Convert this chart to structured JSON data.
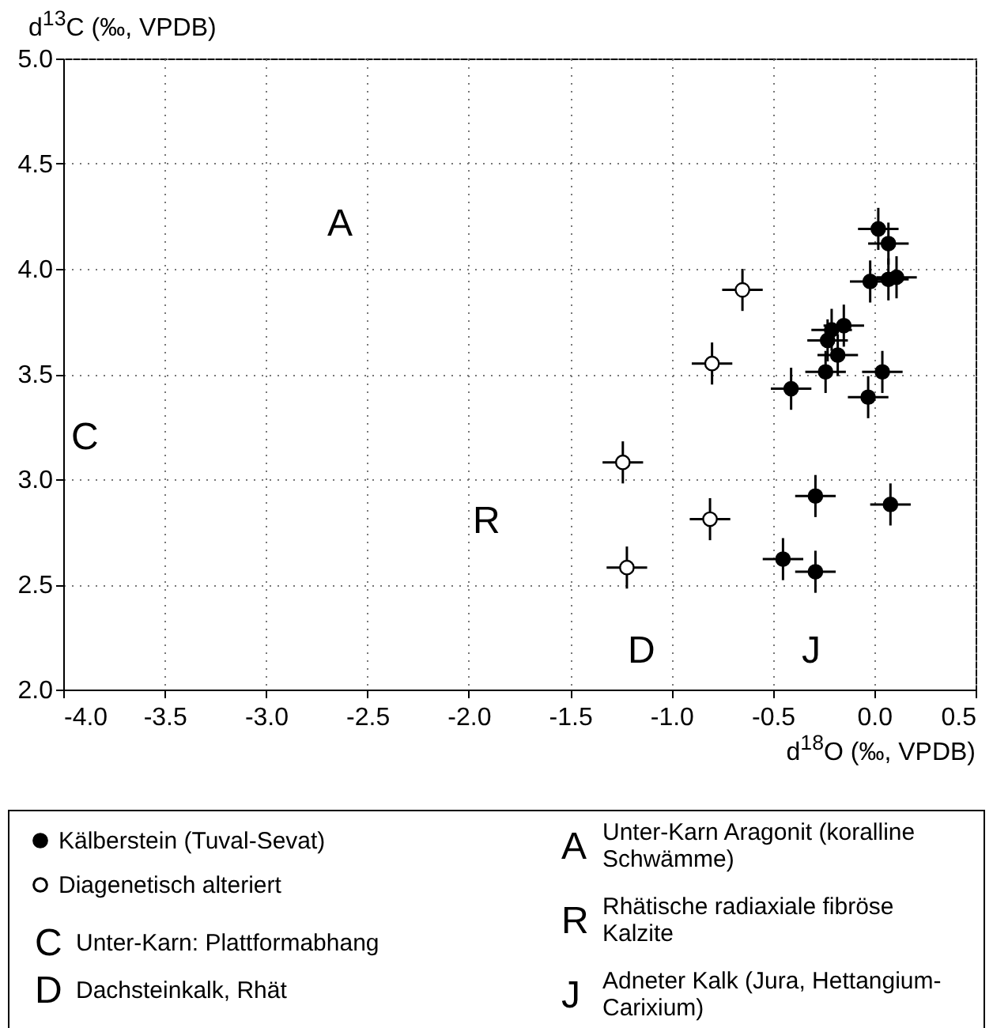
{
  "chart_data": {
    "type": "scatter",
    "xlabel": "d$^{18}$O (‰, VPDB)",
    "ylabel": "d$^{13}$C (‰, VPDB)",
    "xlim": [
      -4.0,
      0.5
    ],
    "ylim": [
      2.0,
      5.0
    ],
    "xticks": [
      {
        "value": -4,
        "label": "-4.0"
      },
      {
        "value": -3.5,
        "label": "-3.5"
      },
      {
        "value": -3,
        "label": "-3.0"
      },
      {
        "value": -2.5,
        "label": "-2.5"
      },
      {
        "value": -2,
        "label": "-2.0"
      },
      {
        "value": -1.5,
        "label": "-1.5"
      },
      {
        "value": -1,
        "label": "-1.0"
      },
      {
        "value": -0.5,
        "label": "-0.5"
      },
      {
        "value": 0,
        "label": "0.0"
      },
      {
        "value": 0.5,
        "label": "0.5"
      }
    ],
    "yticks": [
      {
        "value": 2,
        "label": "2.0"
      },
      {
        "value": 2.5,
        "label": "2.5"
      },
      {
        "value": 3,
        "label": "3.0"
      },
      {
        "value": 3.5,
        "label": "3.5"
      },
      {
        "value": 4,
        "label": "4.0"
      },
      {
        "value": 4.5,
        "label": "4.5"
      },
      {
        "value": 5,
        "label": "5.0"
      }
    ],
    "grid": true,
    "marker": "circle",
    "legend": "bottom left",
    "series": [
      {
        "name": "Kälberstein (Tuval-Sevat)",
        "color": "#000000",
        "x": [
          0.02,
          0.07,
          -0.02,
          0.07,
          0.11,
          -0.15,
          -0.21,
          -0.23,
          -0.18,
          -0.24,
          0.04,
          -0.41,
          -0.03,
          -0.29,
          0.08,
          -0.45,
          -0.29
        ],
        "values": [
          4.19,
          4.12,
          3.94,
          3.95,
          3.96,
          3.73,
          3.71,
          3.66,
          3.59,
          3.51,
          3.51,
          3.43,
          3.39,
          2.92,
          2.88,
          2.62,
          2.56
        ],
        "errors": [
          0.1,
          0.1,
          0.1,
          0.1,
          0.1,
          0.1,
          0.1,
          0.1,
          0.1,
          0.1,
          0.1,
          0.1,
          0.1,
          0.1,
          0.1,
          0.1,
          0.1
        ],
        "xerrors": [
          0.1,
          0.1,
          0.1,
          0.1,
          0.1,
          0.1,
          0.1,
          0.1,
          0.1,
          0.1,
          0.1,
          0.1,
          0.1,
          0.1,
          0.1,
          0.1,
          0.1
        ]
      },
      {
        "name": "Diagenetisch alteriert",
        "color": "#ffffff",
        "x": [
          -0.65,
          -0.8,
          -1.24,
          -0.81,
          -1.22
        ],
        "values": [
          3.9,
          3.55,
          3.08,
          2.81,
          2.58
        ],
        "errors": [
          0.1,
          0.1,
          0.1,
          0.1,
          0.1
        ],
        "xerrors": [
          0.1,
          0.1,
          0.1,
          0.1,
          0.1
        ]
      }
    ],
    "annotations": [
      "A",
      "C",
      "R",
      "D",
      "J",
      "C Unter-Karn: Plattformabhang",
      "D Dachsteinkalk, Rhät",
      "A Unter-Karn Aragonit (koralline Schwämme)",
      "R Rhätische radiaxiale fibröse Kalzite",
      "J Adneter Kalk (Jura, Hettangium-Carixium)"
    ]
  }
}
